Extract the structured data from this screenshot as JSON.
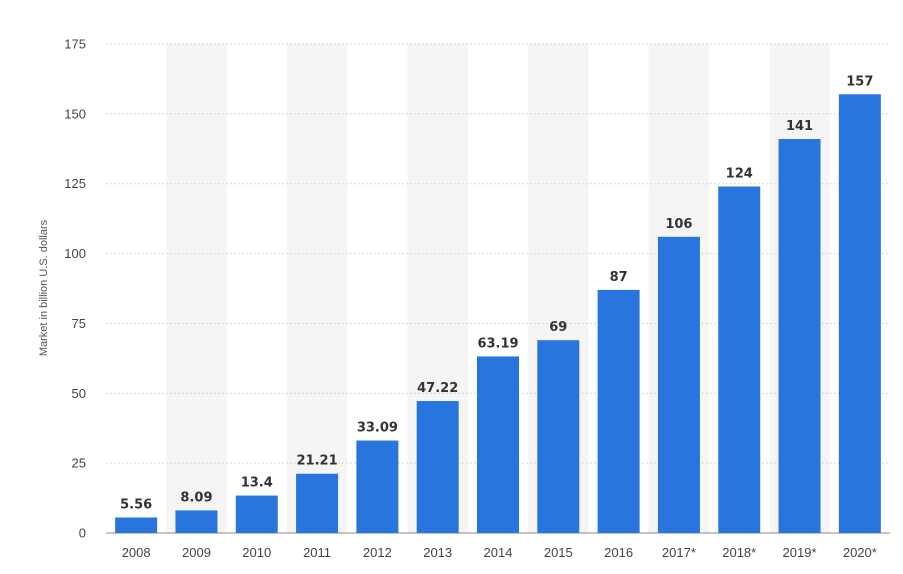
{
  "chart_data": {
    "type": "bar",
    "categories": [
      "2008",
      "2009",
      "2010",
      "2011",
      "2012",
      "2013",
      "2014",
      "2015",
      "2016",
      "2017*",
      "2018*",
      "2019*",
      "2020*"
    ],
    "values": [
      5.56,
      8.09,
      13.4,
      21.21,
      33.09,
      47.22,
      63.19,
      69,
      87,
      106,
      124,
      141,
      157
    ],
    "data_labels": [
      "5.56",
      "8.09",
      "13.4",
      "21.21",
      "33.09",
      "47.22",
      "63.19",
      "69",
      "87",
      "106",
      "124",
      "141",
      "157"
    ],
    "ylabel": "Market in billion U.S. dollars",
    "ylim": [
      0,
      175
    ],
    "yticks": [
      "0",
      "25",
      "50",
      "75",
      "100",
      "125",
      "150",
      "175"
    ],
    "grid": "horizontal dotted",
    "alternating_band_color": "#f5f5f5",
    "bar_color": "#2876dd"
  }
}
